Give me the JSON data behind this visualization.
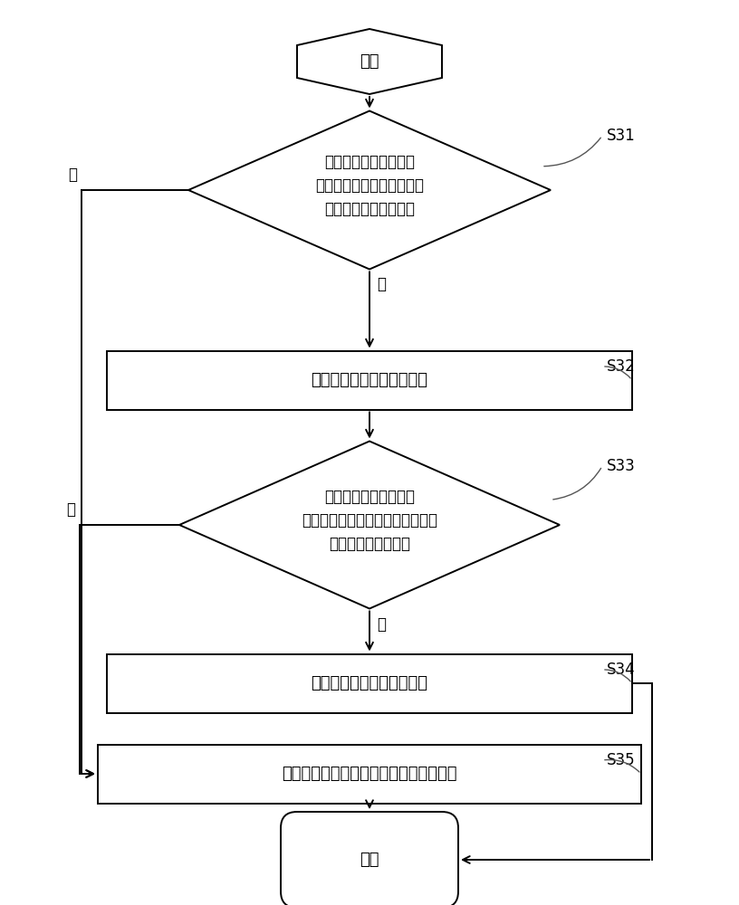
{
  "bg_color": "#ffffff",
  "line_color": "#333333",
  "text_color": "#000000",
  "start_label": "开始",
  "end_label": "结束",
  "diamond1_label": "判断车地通信原始数据\n的数值是否在车地通信原始\n数据的基础取值范围内",
  "box1_label": "确定车地通信原始数据异常",
  "diamond2_label": "判断车地通信原始数据\n的数值是否在车地通信原始数据的\n通信正常取值范围内",
  "box2_label": "确定车地通信原始数据正常",
  "box3_label": "确定车地通信原始数据存在潜在故障风险",
  "tag1": "S31",
  "tag2": "S32",
  "tag3": "S33",
  "tag4": "S34",
  "tag5": "S35",
  "yes_label": "是",
  "no_label": "否",
  "font_size": 13,
  "font_size_small": 12,
  "font_size_tag": 12,
  "lw": 1.4
}
